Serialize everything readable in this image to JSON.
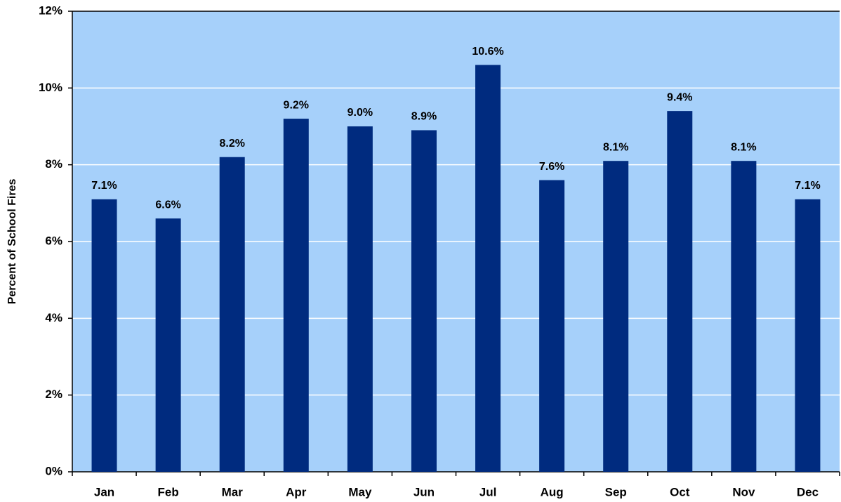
{
  "chart_data": {
    "type": "bar",
    "y_label": "Percent of School Fires",
    "categories": [
      "Jan",
      "Feb",
      "Mar",
      "Apr",
      "May",
      "Jun",
      "Jul",
      "Aug",
      "Sep",
      "Oct",
      "Nov",
      "Dec"
    ],
    "values": [
      7.1,
      6.6,
      8.2,
      9.2,
      9.0,
      8.9,
      10.6,
      7.6,
      8.1,
      9.4,
      8.1,
      7.1
    ],
    "value_labels": [
      "7.1%",
      "6.6%",
      "8.2%",
      "9.2%",
      "9.0%",
      "8.9%",
      "10.6%",
      "7.6%",
      "8.1%",
      "9.4%",
      "8.1%",
      "7.1%"
    ],
    "color": "#002b7f",
    "ylim": [
      0,
      12
    ],
    "yticks": [
      {
        "value": 0,
        "label": "0%"
      },
      {
        "value": 2,
        "label": "2%"
      },
      {
        "value": 4,
        "label": "4%"
      },
      {
        "value": 6,
        "label": "6%"
      },
      {
        "value": 8,
        "label": "8%"
      },
      {
        "value": 10,
        "label": "10%"
      },
      {
        "value": 12,
        "label": "12%"
      }
    ],
    "grid": true
  }
}
